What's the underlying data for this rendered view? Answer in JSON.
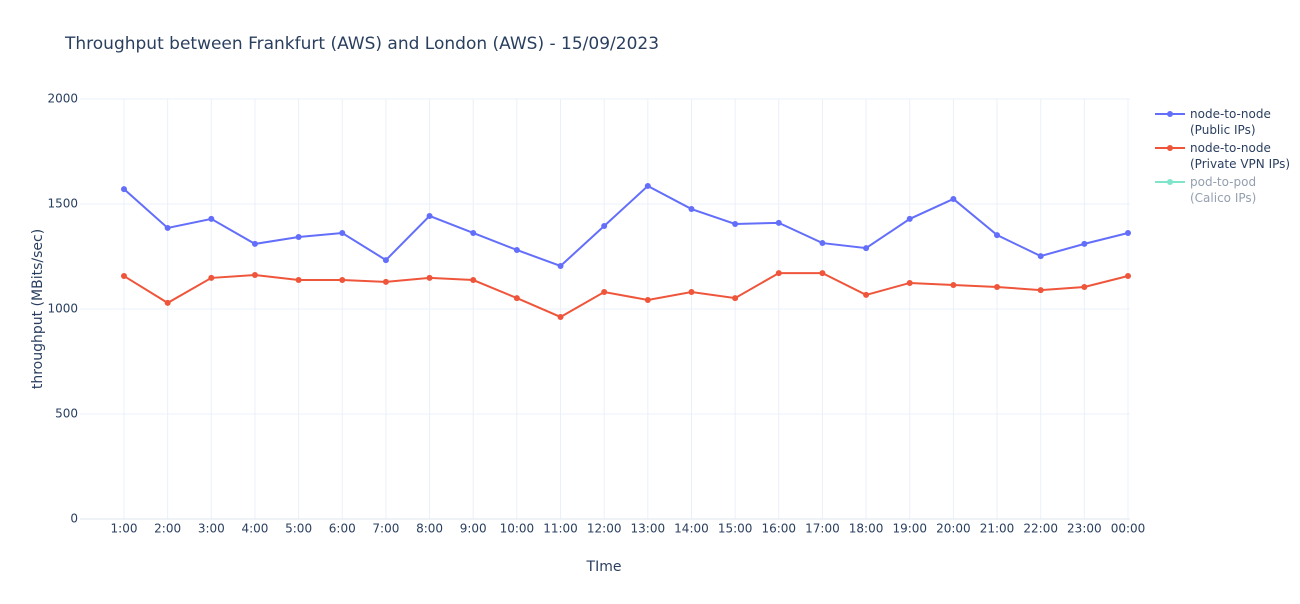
{
  "chart_data": {
    "type": "line",
    "title": "Throughput between Frankfurt (AWS) and London (AWS)   -   15/09/2023",
    "x_label": "TIme",
    "y_label": "throughput (MBits/sec)",
    "categories": [
      "1:00",
      "2:00",
      "3:00",
      "4:00",
      "5:00",
      "6:00",
      "7:00",
      "8:00",
      "9:00",
      "10:00",
      "11:00",
      "12:00",
      "13:00",
      "14:00",
      "15:00",
      "16:00",
      "17:00",
      "18:00",
      "19:00",
      "20:00",
      "21:00",
      "22:00",
      "23:00",
      "00:00"
    ],
    "series": [
      {
        "name": "node-to-node\n(Public IPs)",
        "color": "#636efa",
        "values": [
          1571,
          1386,
          1429,
          1310,
          1343,
          1362,
          1233,
          1443,
          1362,
          1281,
          1205,
          1395,
          1586,
          1476,
          1405,
          1410,
          1314,
          1290,
          1429,
          1524,
          1352,
          1252,
          1310,
          1362
        ]
      },
      {
        "name": "node-to-node\n(Private VPN IPs)",
        "color": "#EF553B",
        "values": [
          1157,
          1029,
          1148,
          1162,
          1138,
          1138,
          1129,
          1148,
          1138,
          1052,
          962,
          1081,
          1043,
          1081,
          1052,
          1171,
          1171,
          1067,
          1124,
          1114,
          1105,
          1090,
          1105,
          1157
        ]
      },
      {
        "name": "pod-to-pod\n(Calico IPs)",
        "color": "#00cc96",
        "visible": "legendonly",
        "values": [
          null,
          null,
          null,
          null,
          null,
          null,
          null,
          null,
          null,
          null,
          null,
          null,
          null,
          null,
          null,
          null,
          null,
          null,
          null,
          null,
          null,
          null,
          null,
          null
        ]
      }
    ],
    "ylim": [
      0,
      2000
    ],
    "yticks": [
      0,
      500,
      1000,
      1500,
      2000
    ],
    "grid": true
  }
}
